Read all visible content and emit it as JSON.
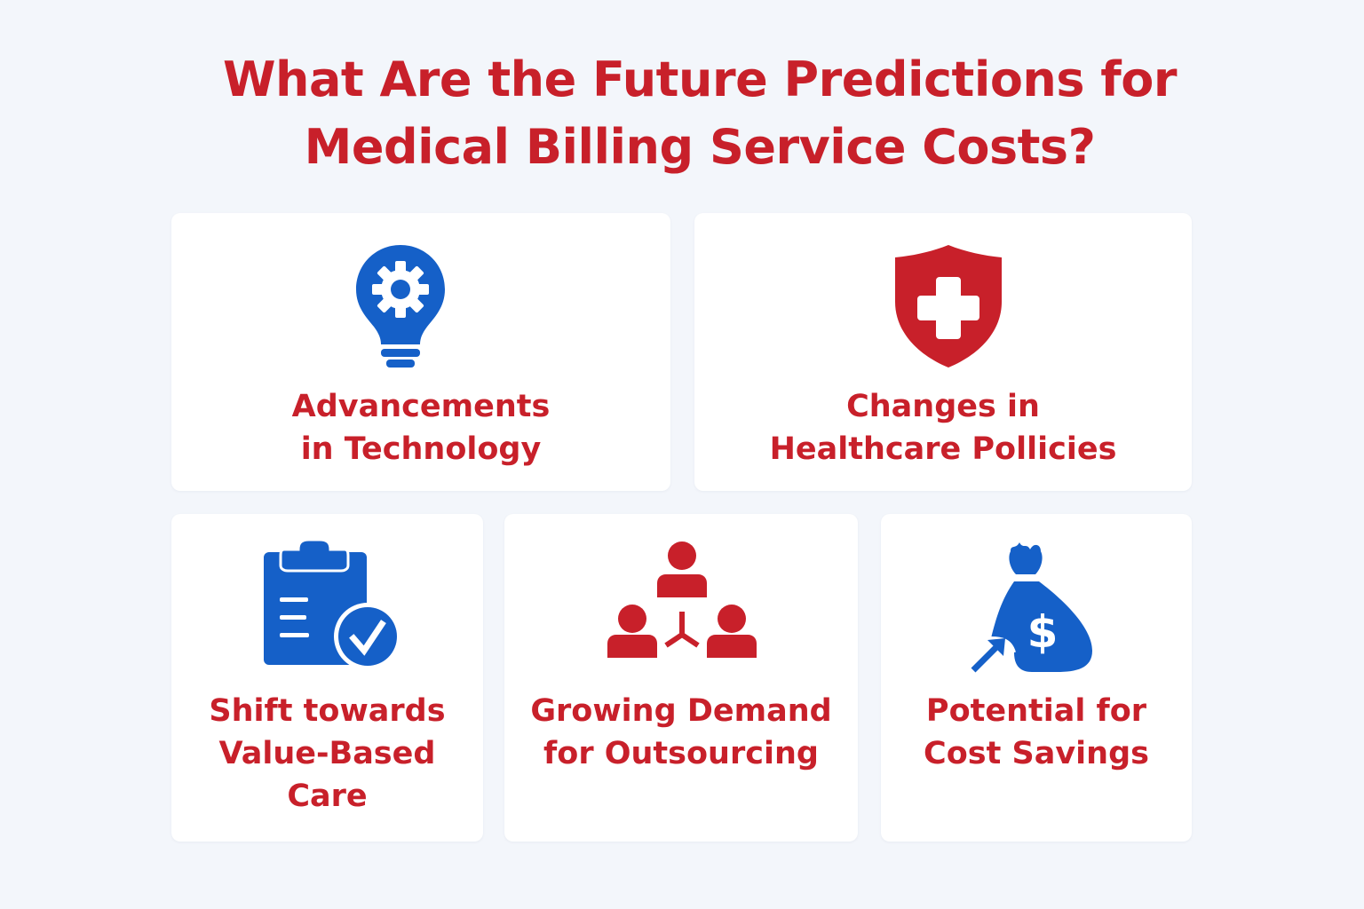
{
  "title": {
    "line1": "What Are the Future Predictions for",
    "line2": "Medical Billing Service Costs?"
  },
  "colors": {
    "accent_red": "#c8202a",
    "accent_blue": "#1560c8",
    "background": "#f3f6fb"
  },
  "cards": [
    {
      "icon": "lightbulb-gear-icon",
      "lines": [
        "Advancements",
        "in Technology"
      ]
    },
    {
      "icon": "shield-cross-icon",
      "lines": [
        "Changes in",
        "Healthcare Pollicies"
      ]
    },
    {
      "icon": "clipboard-check-icon",
      "lines": [
        "Shift towards",
        "Value-Based",
        "Care"
      ]
    },
    {
      "icon": "people-network-icon",
      "lines": [
        "Growing Demand",
        "for Outsourcing"
      ]
    },
    {
      "icon": "money-bag-arrow-icon",
      "lines": [
        "Potential for",
        "Cost Savings"
      ]
    }
  ]
}
